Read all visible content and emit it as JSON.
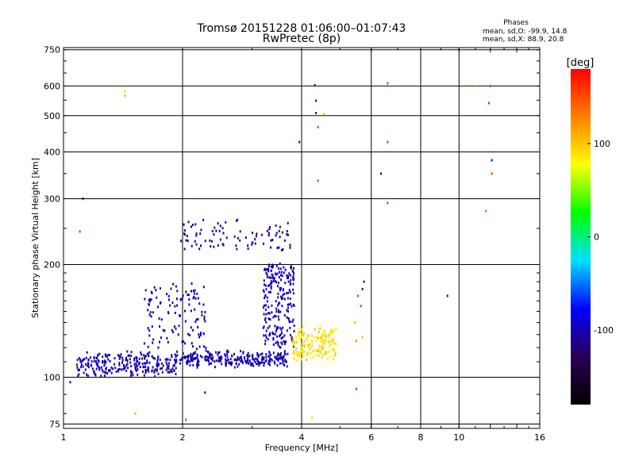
{
  "chart_data": {
    "type": "scatter",
    "title": "Tromsø 20151228 01:06:00–01:07:43",
    "subtitle": "RwPretec (8p)",
    "xlabel": "Frequency [MHz]",
    "ylabel": "Stationary phase Virtual Height [km]",
    "x_scale": "log",
    "y_scale": "log",
    "xlim": [
      1,
      16
    ],
    "ylim": [
      73,
      760
    ],
    "x_ticks": [
      1,
      2,
      4,
      6,
      8,
      10,
      16
    ],
    "y_ticks": [
      75,
      100,
      200,
      300,
      400,
      500,
      600,
      750
    ],
    "grid": true,
    "stats": {
      "heading": "Phases",
      "line1": "mean, sd,O: -99.9, 14.8",
      "line2": "mean, sd,X:  88.9, 20.8"
    },
    "colorbar": {
      "label": "[deg]",
      "range": [
        -180,
        180
      ],
      "ticks": [
        100,
        0,
        -100
      ],
      "colors": [
        "#000000",
        "#2b0055",
        "#0000ff",
        "#00e0ff",
        "#00ff00",
        "#ffff00",
        "#ff8000",
        "#ff0000"
      ]
    },
    "series_o_clusters": [
      {
        "x": [
          1.08,
          1.95
        ],
        "y": [
          102,
          115
        ],
        "n": 260,
        "phase": -100,
        "spread": 0.05
      },
      {
        "x": [
          1.95,
          3.7
        ],
        "y": [
          108,
          116
        ],
        "n": 260,
        "phase": -100,
        "spread": 0.04
      },
      {
        "x": [
          1.6,
          2.3
        ],
        "y": [
          118,
          175
        ],
        "n": 120,
        "phase": -100,
        "spread": 0.08
      },
      {
        "x": [
          3.2,
          3.85
        ],
        "y": [
          120,
          200
        ],
        "n": 220,
        "phase": -100,
        "spread": 0.05
      },
      {
        "x": [
          1.95,
          3.75
        ],
        "y": [
          218,
          262
        ],
        "n": 90,
        "phase": -110,
        "spread": 0.015
      }
    ],
    "series_x_clusters": [
      {
        "x": [
          3.8,
          4.9
        ],
        "y": [
          112,
          135
        ],
        "n": 160,
        "phase": 90,
        "spread": 0.03
      }
    ],
    "scattered_points": [
      {
        "x": 1.43,
        "y": 580,
        "phase": 100
      },
      {
        "x": 1.43,
        "y": 565,
        "phase": 110
      },
      {
        "x": 1.52,
        "y": 80,
        "phase": 110
      },
      {
        "x": 1.12,
        "y": 300,
        "phase": -90
      },
      {
        "x": 1.1,
        "y": 245,
        "phase": -50
      },
      {
        "x": 1.04,
        "y": 97,
        "phase": -130
      },
      {
        "x": 2.04,
        "y": 77,
        "phase": 160
      },
      {
        "x": 2.28,
        "y": 91,
        "phase": -100
      },
      {
        "x": 4.32,
        "y": 603,
        "phase": -100
      },
      {
        "x": 4.35,
        "y": 548,
        "phase": -100
      },
      {
        "x": 4.35,
        "y": 508,
        "phase": -100
      },
      {
        "x": 4.4,
        "y": 466,
        "phase": -50
      },
      {
        "x": 4.55,
        "y": 505,
        "phase": 100
      },
      {
        "x": 3.95,
        "y": 425,
        "phase": -90
      },
      {
        "x": 4.4,
        "y": 335,
        "phase": 160
      },
      {
        "x": 4.25,
        "y": 78,
        "phase": 60
      },
      {
        "x": 5.5,
        "y": 93,
        "phase": -50
      },
      {
        "x": 6.6,
        "y": 610,
        "phase": 160
      },
      {
        "x": 6.6,
        "y": 425,
        "phase": -50
      },
      {
        "x": 6.35,
        "y": 350,
        "phase": -100
      },
      {
        "x": 6.6,
        "y": 292,
        "phase": 160
      },
      {
        "x": 9.35,
        "y": 165,
        "phase": -100
      },
      {
        "x": 11.0,
        "y": 600,
        "phase": 110
      },
      {
        "x": 12.0,
        "y": 600,
        "phase": 160
      },
      {
        "x": 11.9,
        "y": 540,
        "phase": -50
      },
      {
        "x": 12.1,
        "y": 380,
        "phase": -90
      },
      {
        "x": 12.1,
        "y": 350,
        "phase": 160
      },
      {
        "x": 11.7,
        "y": 278,
        "phase": -40
      },
      {
        "x": 5.75,
        "y": 180,
        "phase": -100
      },
      {
        "x": 5.7,
        "y": 172,
        "phase": -100
      },
      {
        "x": 5.55,
        "y": 165,
        "phase": 160
      },
      {
        "x": 5.65,
        "y": 155,
        "phase": 160
      },
      {
        "x": 5.45,
        "y": 140,
        "phase": 110
      },
      {
        "x": 5.7,
        "y": 128,
        "phase": 110
      },
      {
        "x": 5.5,
        "y": 125,
        "phase": 130
      }
    ]
  }
}
